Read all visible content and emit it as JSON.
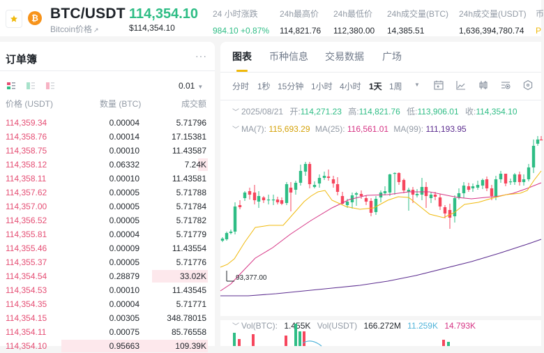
{
  "header": {
    "favorite_icon": "star-icon",
    "coin_icon": "bitcoin-icon",
    "pair": "BTC/USDT",
    "subtitle": "Bitcoin价格",
    "subtitle_icon": "arrow-up-right-icon",
    "last_price": "114,354.10",
    "last_price_usd": "$114,354.10",
    "stats": [
      {
        "label": "24 小时涨跌",
        "value": "984.10 +0.87%",
        "color": "#2ebd85"
      },
      {
        "label": "24h最高价",
        "value": "114,821.76"
      },
      {
        "label": "24h最低价",
        "value": "112,380.00"
      },
      {
        "label": "24h成交量(BTC)",
        "value": "14,385.51"
      },
      {
        "label": "24h成交量(USDT)",
        "value": "1,636,394,780.74"
      },
      {
        "label": "币",
        "value": "P",
        "color": "#f0b90b"
      }
    ]
  },
  "orderbook": {
    "title": "订单簿",
    "more_icon": "more-dots-icon",
    "view_modes": [
      "both-sides-icon",
      "bids-only-icon",
      "asks-only-icon"
    ],
    "step": "0.01",
    "columns": [
      "价格 (USDT)",
      "数量 (BTC)",
      "成交额"
    ],
    "asks": [
      {
        "price": "114,359.34",
        "qty": "0.00004",
        "total": "5.71796",
        "depth": 0
      },
      {
        "price": "114,358.76",
        "qty": "0.00014",
        "total": "17.15381",
        "depth": 0
      },
      {
        "price": "114,358.75",
        "qty": "0.00010",
        "total": "11.43587",
        "depth": 0
      },
      {
        "price": "114,358.12",
        "qty": "0.06332",
        "total": "7.24K",
        "depth": 14
      },
      {
        "price": "114,358.11",
        "qty": "0.00010",
        "total": "11.43581",
        "depth": 0
      },
      {
        "price": "114,357.62",
        "qty": "0.00005",
        "total": "5.71788",
        "depth": 0
      },
      {
        "price": "114,357.00",
        "qty": "0.00005",
        "total": "5.71784",
        "depth": 0
      },
      {
        "price": "114,356.52",
        "qty": "0.00005",
        "total": "5.71782",
        "depth": 0
      },
      {
        "price": "114,355.81",
        "qty": "0.00004",
        "total": "5.71779",
        "depth": 0
      },
      {
        "price": "114,355.46",
        "qty": "0.00009",
        "total": "11.43554",
        "depth": 0
      },
      {
        "price": "114,355.37",
        "qty": "0.00005",
        "total": "5.71776",
        "depth": 0
      },
      {
        "price": "114,354.54",
        "qty": "0.28879",
        "total": "33.02K",
        "depth": 80
      },
      {
        "price": "114,354.53",
        "qty": "0.00010",
        "total": "11.43545",
        "depth": 0
      },
      {
        "price": "114,354.35",
        "qty": "0.00004",
        "total": "5.71771",
        "depth": 0
      },
      {
        "price": "114,354.15",
        "qty": "0.00305",
        "total": "348.78015",
        "depth": 0
      },
      {
        "price": "114,354.11",
        "qty": "0.00075",
        "total": "85.76558",
        "depth": 0
      },
      {
        "price": "114,354.10",
        "qty": "0.95663",
        "total": "109.39K",
        "depth": 210
      }
    ]
  },
  "chart_panel": {
    "tabs": [
      {
        "label": "图表",
        "active": true
      },
      {
        "label": "币种信息"
      },
      {
        "label": "交易数据"
      },
      {
        "label": "广场"
      }
    ],
    "intervals": [
      {
        "label": "分时"
      },
      {
        "label": "1秒"
      },
      {
        "label": "15分钟"
      },
      {
        "label": "1小时"
      },
      {
        "label": "4小时"
      },
      {
        "label": "1天",
        "active": true
      },
      {
        "label": "1周"
      }
    ],
    "tools": [
      "calendar-icon",
      "line-chart-icon",
      "candlestick-icon",
      "indicator-settings-icon",
      "settings-hex-icon"
    ],
    "ohlc": {
      "date": "2025/08/21",
      "open_label": "开:",
      "open": "114,271.23",
      "high_label": "高:",
      "high": "114,821.76",
      "low_label": "低:",
      "low": "113,906.01",
      "close_label": "收:",
      "close": "114,354.10"
    },
    "ma": {
      "ma7_label": "MA(7):",
      "ma7": "115,693.29",
      "ma7_color": "#f0b90b",
      "ma25_label": "MA(25):",
      "ma25": "116,561.01",
      "ma25_color": "#d63384",
      "ma99_label": "MA(99):",
      "ma99": "111,193.95",
      "ma99_color": "#5b2c8f"
    },
    "low_marker": "93,377.00",
    "volume": {
      "btc_label": "Vol(BTC):",
      "btc": "1.455K",
      "usdt_label": "Vol(USDT)",
      "usdt": "166.272M",
      "ma5": "11.259K",
      "ma5_color": "#4fb3d9",
      "ma10": "14.793K",
      "ma10_color": "#d63384"
    }
  }
}
